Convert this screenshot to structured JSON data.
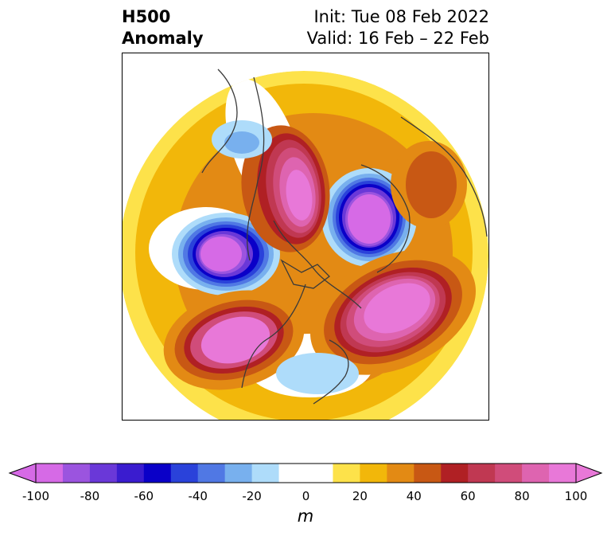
{
  "title": {
    "left_line1": "H500",
    "left_line2": "Anomaly",
    "right_line1": "Init: Tue 08 Feb 2022",
    "right_line2": "Valid: 16 Feb – 22 Feb"
  },
  "colorbar": {
    "units": "m",
    "tick_labels": [
      "-100",
      "-80",
      "-60",
      "-40",
      "-20",
      "0",
      "20",
      "40",
      "60",
      "80",
      "100"
    ],
    "bins": [
      {
        "from": -100,
        "to": -90,
        "color": "#d66ae6"
      },
      {
        "from": -90,
        "to": -80,
        "color": "#9b54df"
      },
      {
        "from": -80,
        "to": -70,
        "color": "#6a38d8"
      },
      {
        "from": -70,
        "to": -60,
        "color": "#3a1ccf"
      },
      {
        "from": -60,
        "to": -50,
        "color": "#0a00c8"
      },
      {
        "from": -50,
        "to": -40,
        "color": "#2a42da"
      },
      {
        "from": -40,
        "to": -30,
        "color": "#5078e4"
      },
      {
        "from": -30,
        "to": -20,
        "color": "#78b0ee"
      },
      {
        "from": -20,
        "to": -10,
        "color": "#aedcfa"
      },
      {
        "from": -10,
        "to": 10,
        "color": "#ffffff"
      },
      {
        "from": 10,
        "to": 20,
        "color": "#fde24a"
      },
      {
        "from": 20,
        "to": 30,
        "color": "#f2b70a"
      },
      {
        "from": 30,
        "to": 40,
        "color": "#e38a14"
      },
      {
        "from": 40,
        "to": 50,
        "color": "#c85814"
      },
      {
        "from": 50,
        "to": 60,
        "color": "#b02024"
      },
      {
        "from": 60,
        "to": 70,
        "color": "#c03852"
      },
      {
        "from": 70,
        "to": 80,
        "color": "#d04c7a"
      },
      {
        "from": 80,
        "to": 90,
        "color": "#de64b0"
      },
      {
        "from": 90,
        "to": 100,
        "color": "#e878d8"
      }
    ],
    "extend_min_color": "#d66ae6",
    "extend_max_color": "#e878d8"
  },
  "map": {
    "projection": "north-polar-stereographic",
    "anomaly_centers": [
      {
        "feature": "negative-anomaly-alaska-west",
        "value": -100
      },
      {
        "feature": "negative-anomaly-siberia-arctic",
        "value": -100
      },
      {
        "feature": "positive-anomaly-atlantic",
        "value": 100
      },
      {
        "feature": "positive-anomaly-eastern-europe",
        "value": 100
      },
      {
        "feature": "positive-anomaly-west-canada",
        "value": 100
      },
      {
        "feature": "weak-negative-anomaly-east-us",
        "value": -20
      },
      {
        "feature": "weak-negative-anomaly-east-asia",
        "value": -20
      }
    ]
  }
}
